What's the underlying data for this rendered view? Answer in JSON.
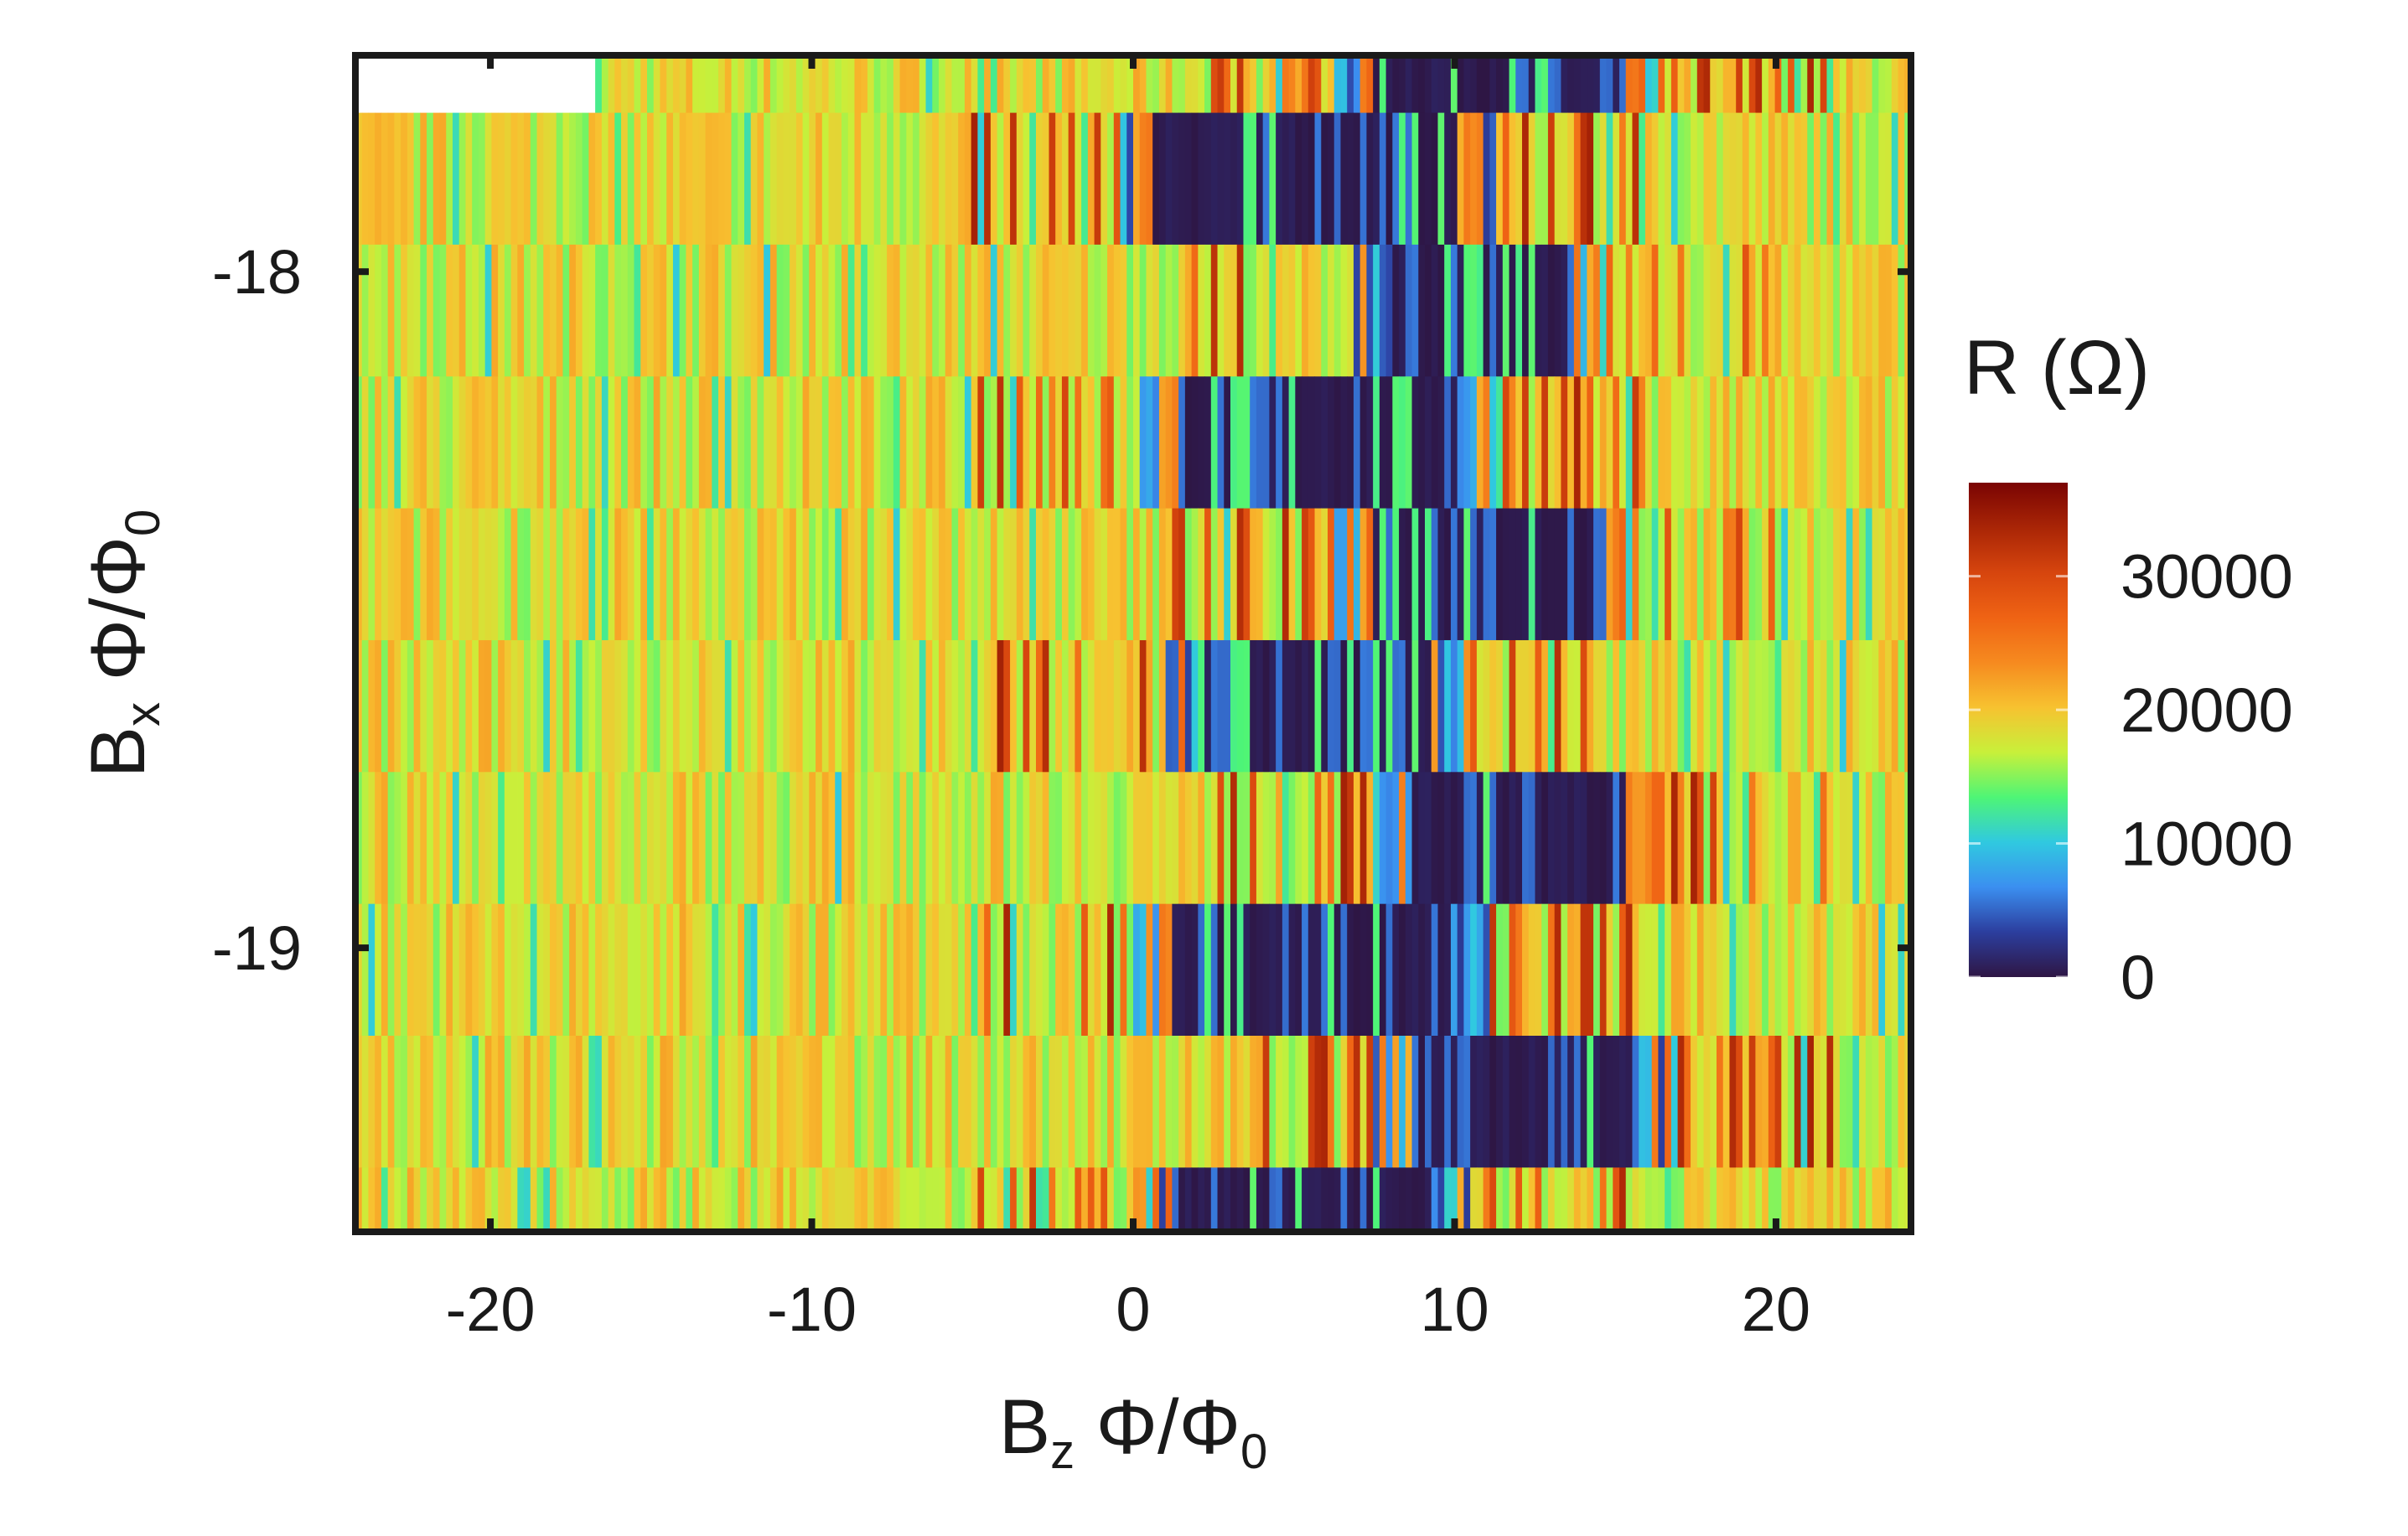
{
  "chart_data": {
    "type": "heatmap",
    "title": "",
    "xlabel": {
      "base": "B",
      "sub": "z",
      "rest": " Φ/Φ",
      "rest_sub": "0"
    },
    "ylabel": {
      "base": "B",
      "sub": "x",
      "rest": " Φ/Φ",
      "rest_sub": "0"
    },
    "xlim": [
      -24.2,
      24.2
    ],
    "ylim": [
      -19.42,
      -17.68
    ],
    "x_ticks": [
      -20,
      -10,
      0,
      10,
      20
    ],
    "x_tick_labels": [
      "-20",
      "-10",
      "0",
      "10",
      "20"
    ],
    "y_ticks": [
      -18,
      -19
    ],
    "y_tick_labels": [
      "-18",
      "-19"
    ],
    "rows_y": [
      -17.73,
      -17.9,
      -18.1,
      -18.3,
      -18.5,
      -18.7,
      -18.9,
      -19.1,
      -19.3,
      -19.39
    ],
    "row_edges": [
      -17.68,
      -17.765,
      -17.96,
      -18.155,
      -18.35,
      -18.545,
      -18.74,
      -18.935,
      -19.13,
      -19.325,
      -19.42
    ],
    "missing_region": {
      "row": 0,
      "x_range": [
        -24.2,
        -16.8
      ]
    },
    "low_resistance_bands": [
      {
        "y": -17.73,
        "x_range": [
          6.3,
          16.5
        ]
      },
      {
        "y": -17.9,
        "x_range": [
          -0.5,
          11.3
        ]
      },
      {
        "y": -18.1,
        "x_range": [
          6.9,
          15.0
        ]
      },
      {
        "y": -18.3,
        "x_range": [
          0.2,
          11.2
        ]
      },
      {
        "y": -18.5,
        "x_range": [
          6.3,
          15.6
        ]
      },
      {
        "y": -18.7,
        "x_range": [
          0.8,
          10.5
        ]
      },
      {
        "y": -18.9,
        "x_range": [
          7.5,
          16.6
        ]
      },
      {
        "y": -19.1,
        "x_range": [
          0.0,
          11.0
        ]
      },
      {
        "y": -19.3,
        "x_range": [
          7.4,
          17.0
        ]
      },
      {
        "y": -19.39,
        "x_range": [
          0.0,
          10.5
        ]
      }
    ],
    "background_resistance": 18000,
    "colorbar": {
      "label": "R (Ω)",
      "range": [
        0,
        37000
      ],
      "ticks": [
        0,
        10000,
        20000,
        30000
      ],
      "tick_labels": [
        "0",
        "10000",
        "20000",
        "30000"
      ],
      "colors": [
        "#2e1644",
        "#2c3e9e",
        "#3b8ff0",
        "#30c9e0",
        "#4ef576",
        "#c8f03a",
        "#f7c230",
        "#f68a1f",
        "#ef6314",
        "#d6450e",
        "#a92506",
        "#7a0403"
      ]
    }
  }
}
